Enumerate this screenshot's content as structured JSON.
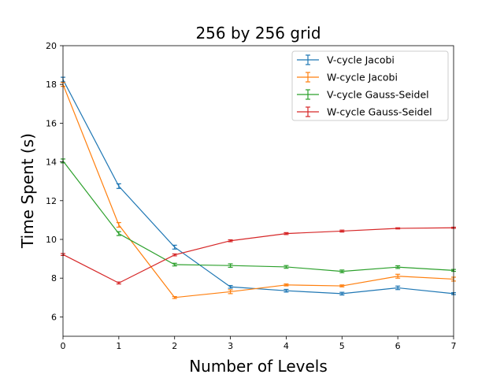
{
  "chart_data": {
    "type": "line",
    "title": "256 by 256 grid",
    "xlabel": "Number of Levels",
    "ylabel": "Time Spent (s)",
    "xlim": [
      0,
      7
    ],
    "ylim": [
      5,
      20
    ],
    "xticks": [
      0,
      1,
      2,
      3,
      4,
      5,
      6,
      7
    ],
    "yticks": [
      6,
      8,
      10,
      12,
      14,
      16,
      18,
      20
    ],
    "grid": false,
    "legend_position": "top-right",
    "error_bars": true,
    "x": [
      0,
      1,
      2,
      3,
      4,
      5,
      6,
      7
    ],
    "series": [
      {
        "name": "V-cycle Jacobi",
        "color": "#1f77b4",
        "values": [
          18.25,
          12.75,
          9.6,
          7.55,
          7.35,
          7.2,
          7.5,
          7.2
        ],
        "errors": [
          0.12,
          0.12,
          0.1,
          0.07,
          0.07,
          0.07,
          0.09,
          0.05
        ]
      },
      {
        "name": "W-cycle Jacobi",
        "color": "#ff7f0e",
        "values": [
          18.0,
          10.75,
          7.0,
          7.3,
          7.65,
          7.6,
          8.1,
          7.95
        ],
        "errors": [
          0.1,
          0.12,
          0.05,
          0.1,
          0.05,
          0.05,
          0.1,
          0.1
        ]
      },
      {
        "name": "V-cycle Gauss-Seidel",
        "color": "#2ca02c",
        "values": [
          14.05,
          10.3,
          8.7,
          8.65,
          8.58,
          8.35,
          8.57,
          8.4
        ],
        "errors": [
          0.1,
          0.1,
          0.07,
          0.09,
          0.07,
          0.07,
          0.07,
          0.05
        ]
      },
      {
        "name": "W-cycle Gauss-Seidel",
        "color": "#d62728",
        "values": [
          9.22,
          7.75,
          9.2,
          9.93,
          10.3,
          10.43,
          10.57,
          10.6
        ],
        "errors": [
          0.05,
          0.05,
          0.05,
          0.05,
          0.05,
          0.05,
          0.03,
          0.03
        ]
      }
    ]
  }
}
